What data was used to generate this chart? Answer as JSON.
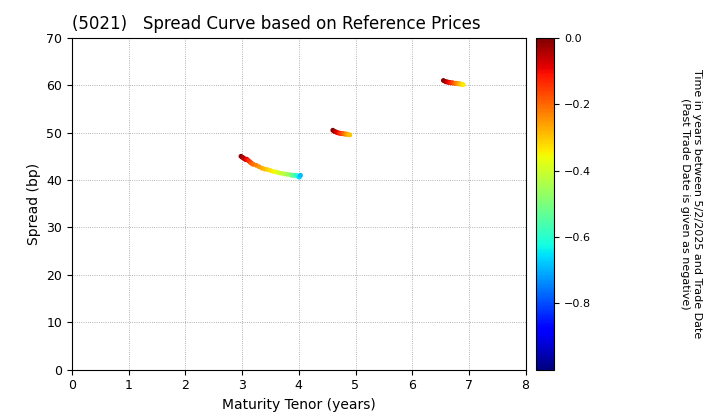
{
  "title": "(5021)   Spread Curve based on Reference Prices",
  "xlabel": "Maturity Tenor (years)",
  "ylabel": "Spread (bp)",
  "xlim": [
    0,
    8
  ],
  "ylim": [
    0,
    70
  ],
  "xticks": [
    0,
    1,
    2,
    3,
    4,
    5,
    6,
    7,
    8
  ],
  "yticks": [
    0,
    10,
    20,
    30,
    40,
    50,
    60,
    70
  ],
  "colorbar_label_line1": "Time in years between 5/2/2025 and Trade Date",
  "colorbar_label_line2": "(Past Trade Date is given as negative)",
  "colorbar_vmin": -1.0,
  "colorbar_vmax": 0.0,
  "colorbar_ticks": [
    0.0,
    -0.2,
    -0.4,
    -0.6,
    -0.8
  ],
  "clusters": [
    {
      "x": [
        2.98,
        3.0,
        3.02,
        3.04,
        3.06,
        3.08,
        3.1,
        3.12,
        3.14,
        3.16,
        3.18,
        3.2,
        3.25,
        3.3,
        3.35,
        3.4,
        3.45,
        3.5,
        3.55,
        3.6,
        3.65,
        3.7,
        3.75,
        3.8,
        3.85,
        3.87,
        3.89,
        3.91,
        3.93,
        3.95,
        3.97,
        3.99,
        4.0,
        4.01,
        4.02,
        4.03
      ],
      "y": [
        45.0,
        44.8,
        44.7,
        44.5,
        44.3,
        44.4,
        44.2,
        44.0,
        43.8,
        43.6,
        43.4,
        43.3,
        43.1,
        42.8,
        42.5,
        42.3,
        42.2,
        42.0,
        41.8,
        41.7,
        41.5,
        41.4,
        41.3,
        41.2,
        41.1,
        41.0,
        41.0,
        41.0,
        41.0,
        41.0,
        40.9,
        40.8,
        40.7,
        40.6,
        40.8,
        41.0
      ],
      "c": [
        0.0,
        -0.02,
        -0.04,
        -0.05,
        -0.07,
        -0.09,
        -0.11,
        -0.13,
        -0.15,
        -0.17,
        -0.19,
        -0.21,
        -0.23,
        -0.25,
        -0.27,
        -0.29,
        -0.31,
        -0.33,
        -0.35,
        -0.37,
        -0.39,
        -0.41,
        -0.43,
        -0.45,
        -0.47,
        -0.49,
        -0.51,
        -0.53,
        -0.55,
        -0.57,
        -0.59,
        -0.61,
        -0.63,
        -0.65,
        -0.67,
        -0.69
      ]
    },
    {
      "x": [
        4.6,
        4.62,
        4.64,
        4.66,
        4.68,
        4.7,
        4.72,
        4.74,
        4.76,
        4.78,
        4.8,
        4.82,
        4.84,
        4.86,
        4.88,
        4.9
      ],
      "y": [
        50.5,
        50.3,
        50.2,
        50.1,
        50.0,
        49.9,
        49.9,
        49.8,
        49.8,
        49.8,
        49.7,
        49.7,
        49.7,
        49.6,
        49.6,
        49.5
      ],
      "c": [
        0.0,
        -0.02,
        -0.04,
        -0.06,
        -0.08,
        -0.1,
        -0.12,
        -0.14,
        -0.16,
        -0.18,
        -0.2,
        -0.22,
        -0.24,
        -0.26,
        -0.28,
        -0.3
      ]
    },
    {
      "x": [
        6.55,
        6.58,
        6.6,
        6.62,
        6.64,
        6.66,
        6.68,
        6.7,
        6.72,
        6.74,
        6.76,
        6.78,
        6.8,
        6.82,
        6.84,
        6.86,
        6.88,
        6.9
      ],
      "y": [
        61.0,
        60.8,
        60.7,
        60.7,
        60.6,
        60.6,
        60.5,
        60.5,
        60.5,
        60.4,
        60.4,
        60.4,
        60.3,
        60.3,
        60.3,
        60.2,
        60.2,
        60.1
      ],
      "c": [
        0.0,
        -0.02,
        -0.04,
        -0.06,
        -0.08,
        -0.1,
        -0.12,
        -0.14,
        -0.16,
        -0.18,
        -0.2,
        -0.22,
        -0.24,
        -0.26,
        -0.28,
        -0.3,
        -0.32,
        -0.34
      ]
    }
  ],
  "bg_color": "#ffffff",
  "title_fontsize": 12,
  "axis_fontsize": 10,
  "tick_fontsize": 9,
  "cbar_fontsize": 8,
  "scatter_size": 12
}
